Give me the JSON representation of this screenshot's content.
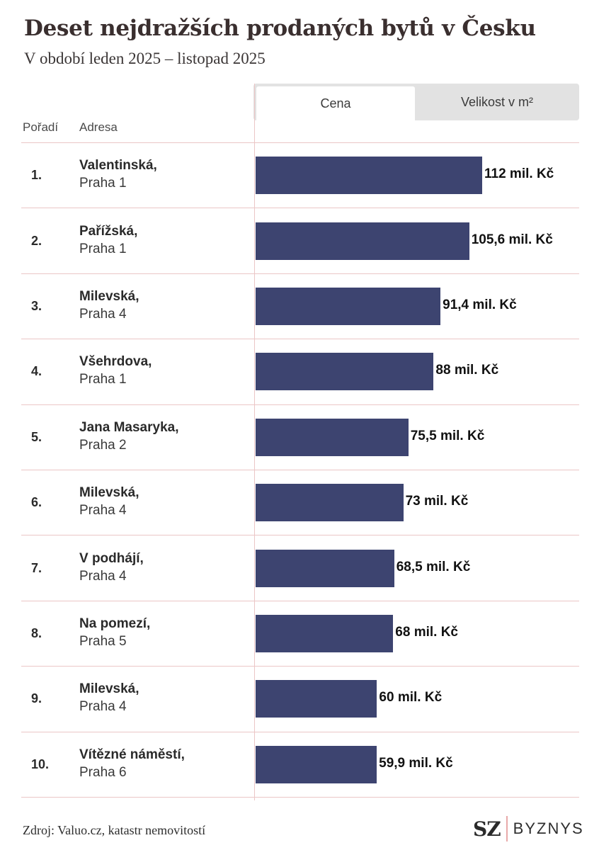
{
  "title": "Deset nejdražších prodaných bytů v Česku",
  "subtitle": "V období leden 2025 – listopad 2025",
  "tabs": [
    {
      "label": "Cena",
      "active": true
    },
    {
      "label": "Velikost v m²",
      "active": false
    }
  ],
  "columns": {
    "rank": "Pořadí",
    "address": "Adresa"
  },
  "source": "Zdroj: Valuo.cz, katastr nemovitostí",
  "logo": {
    "mark": "SZ",
    "brand": "BYZNYS"
  },
  "colors": {
    "bar": "#3d4470",
    "rule": "#ebc6c6",
    "tab_inactive": "#e2e2e2"
  },
  "chart_data": {
    "type": "bar",
    "orientation": "horizontal",
    "unit": "mil. Kč",
    "rows": [
      {
        "rank": "1.",
        "street": "Valentinská,",
        "city": "Praha 1",
        "value": 112,
        "label": "112 mil. Kč"
      },
      {
        "rank": "2.",
        "street": "Pařížská,",
        "city": "Praha 1",
        "value": 105.6,
        "label": "105,6 mil. Kč"
      },
      {
        "rank": "3.",
        "street": "Milevská,",
        "city": "Praha 4",
        "value": 91.4,
        "label": "91,4 mil. Kč"
      },
      {
        "rank": "4.",
        "street": "Všehrdova,",
        "city": "Praha 1",
        "value": 88,
        "label": "88 mil. Kč"
      },
      {
        "rank": "5.",
        "street": "Jana Masaryka,",
        "city": "Praha 2",
        "value": 75.5,
        "label": "75,5 mil. Kč"
      },
      {
        "rank": "6.",
        "street": "Milevská,",
        "city": "Praha 4",
        "value": 73,
        "label": "73 mil. Kč"
      },
      {
        "rank": "7.",
        "street": "V podhájí,",
        "city": "Praha 4",
        "value": 68.5,
        "label": "68,5 mil. Kč"
      },
      {
        "rank": "8.",
        "street": "Na pomezí,",
        "city": "Praha 5",
        "value": 68,
        "label": "68 mil. Kč"
      },
      {
        "rank": "9.",
        "street": "Milevská,",
        "city": "Praha 4",
        "value": 60,
        "label": "60 mil. Kč"
      },
      {
        "rank": "10.",
        "street": "Vítězné náměstí,",
        "city": "Praha 6",
        "value": 59.9,
        "label": "59,9 mil. Kč"
      }
    ]
  }
}
